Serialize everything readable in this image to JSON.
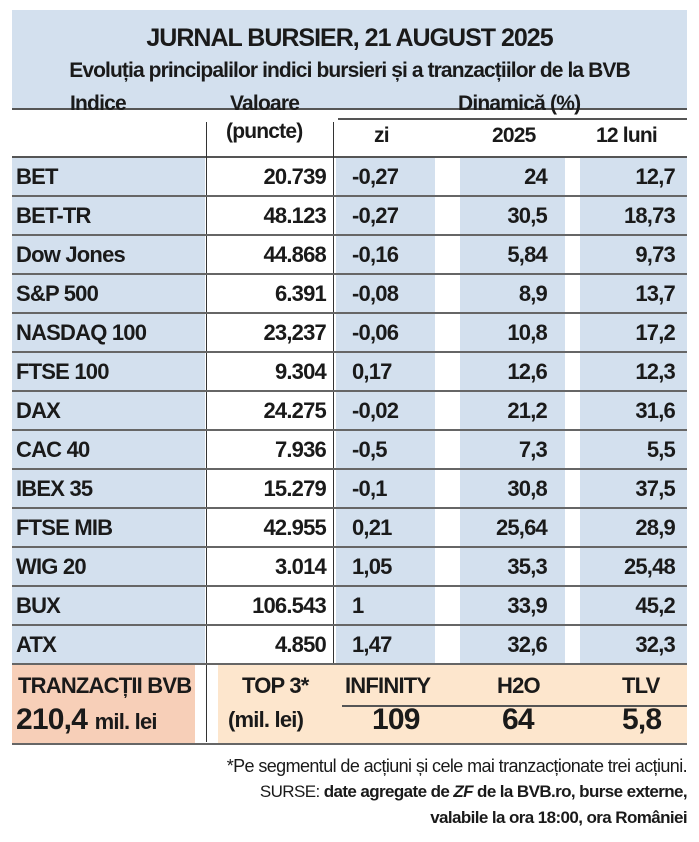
{
  "title": "JURNAL BURSIER, 21 AUGUST 2025",
  "subtitle": "Evoluția principalilor indici bursieri și a tranzacțiilor de la BVB",
  "headers": {
    "indice": "Indice",
    "valoare": "Valoare",
    "puncte": "(puncte)",
    "dinamica": "Dinamică (%)",
    "zi": "zi",
    "y2025": "2025",
    "luni12": "12 luni"
  },
  "rows": [
    {
      "name": "BET",
      "value": "20.739",
      "zi": "-0,27",
      "y2025": "24",
      "m12": "12,7"
    },
    {
      "name": "BET-TR",
      "value": "48.123",
      "zi": "-0,27",
      "y2025": "30,5",
      "m12": "18,73"
    },
    {
      "name": "Dow Jones",
      "value": "44.868",
      "zi": "-0,16",
      "y2025": "5,84",
      "m12": "9,73"
    },
    {
      "name": "S&P 500",
      "value": "6.391",
      "zi": "-0,08",
      "y2025": "8,9",
      "m12": "13,7"
    },
    {
      "name": "NASDAQ 100",
      "value": "23,237",
      "zi": "-0,06",
      "y2025": "10,8",
      "m12": "17,2"
    },
    {
      "name": "FTSE 100",
      "value": "9.304",
      "zi": "0,17",
      "y2025": "12,6",
      "m12": "12,3"
    },
    {
      "name": "DAX",
      "value": "24.275",
      "zi": "-0,02",
      "y2025": "21,2",
      "m12": "31,6"
    },
    {
      "name": "CAC 40",
      "value": "7.936",
      "zi": "-0,5",
      "y2025": "7,3",
      "m12": "5,5"
    },
    {
      "name": "IBEX 35",
      "value": "15.279",
      "zi": "-0,1",
      "y2025": "30,8",
      "m12": "37,5"
    },
    {
      "name": "FTSE MIB",
      "value": "42.955",
      "zi": "0,21",
      "y2025": "25,64",
      "m12": "28,9"
    },
    {
      "name": "WIG 20",
      "value": "3.014",
      "zi": "1,05",
      "y2025": "35,3",
      "m12": "25,48"
    },
    {
      "name": "BUX",
      "value": "106.543",
      "zi": "1",
      "y2025": "33,9",
      "m12": "45,2"
    },
    {
      "name": "ATX",
      "value": "4.850",
      "zi": "1,47",
      "y2025": "32,6",
      "m12": "32,3"
    }
  ],
  "tranzactii": {
    "label": "TRANZACȚII BVB",
    "total_value": "210,4",
    "total_unit": "mil. lei",
    "top_label": "TOP 3*",
    "top_unit": "(mil. lei)",
    "top": [
      {
        "name": "INFINITY",
        "value": "109"
      },
      {
        "name": "H2O",
        "value": "64"
      },
      {
        "name": "TLV",
        "value": "5,8"
      }
    ]
  },
  "footnote": "*Pe segmentul de acțiuni și cele mai tranzacționate trei acțiuni.",
  "sources_label": "SURSE:",
  "sources_a": "date agregate de",
  "sources_zf": "ZF",
  "sources_b": "de la BVB.ro, burse externe,",
  "sources_c": "valabile la ora 18:00, ora României",
  "colors": {
    "blue": "#d3e0ee",
    "orange": "#f7cfb8",
    "peach": "#fde6cd"
  }
}
